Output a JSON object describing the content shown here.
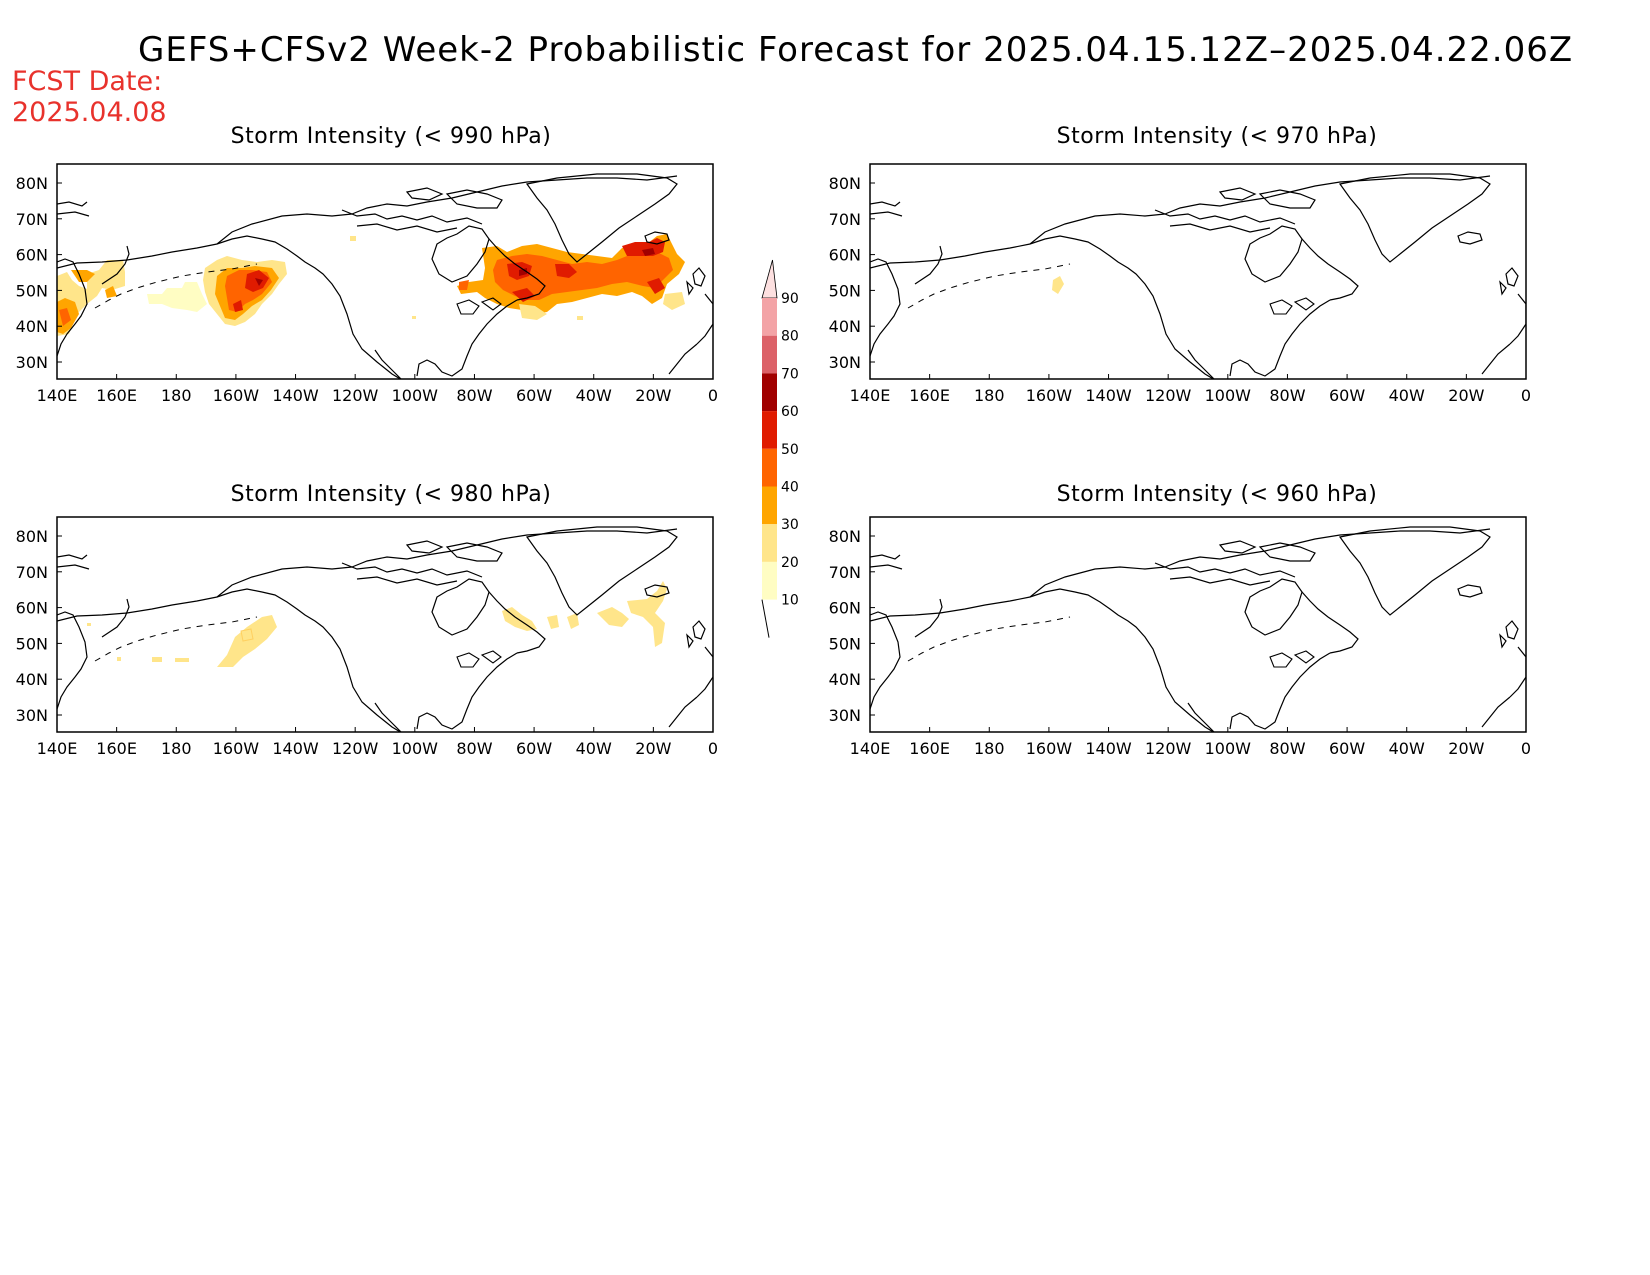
{
  "title": "GEFS+CFSv2 Week-2 Probabilistic Forecast for 2025.04.15.12Z–2025.04.22.06Z",
  "forecast_date": {
    "label": "FCST Date:",
    "value": "2025.04.08"
  },
  "panels": [
    {
      "title": "Storm Intensity (< 990 hPa)"
    },
    {
      "title": "Storm Intensity (< 970 hPa)"
    },
    {
      "title": "Storm Intensity (< 980 hPa)"
    },
    {
      "title": "Storm Intensity (< 960 hPa)"
    }
  ],
  "axes": {
    "lon_labels": [
      "140E",
      "160E",
      "180",
      "160W",
      "140W",
      "120W",
      "100W",
      "80W",
      "60W",
      "40W",
      "20W",
      "0"
    ],
    "lat_labels": [
      "80N",
      "70N",
      "60N",
      "50N",
      "40N",
      "30N"
    ]
  },
  "colorbar": {
    "labels": [
      "90",
      "80",
      "70",
      "60",
      "50",
      "40",
      "30",
      "20",
      "10"
    ],
    "colors": [
      "#fde0e0",
      "#f3a3a6",
      "#dc6168",
      "#a10000",
      "#e01b00",
      "#ff6400",
      "#ffa500",
      "#ffe58a",
      "#fffdc3"
    ]
  }
}
